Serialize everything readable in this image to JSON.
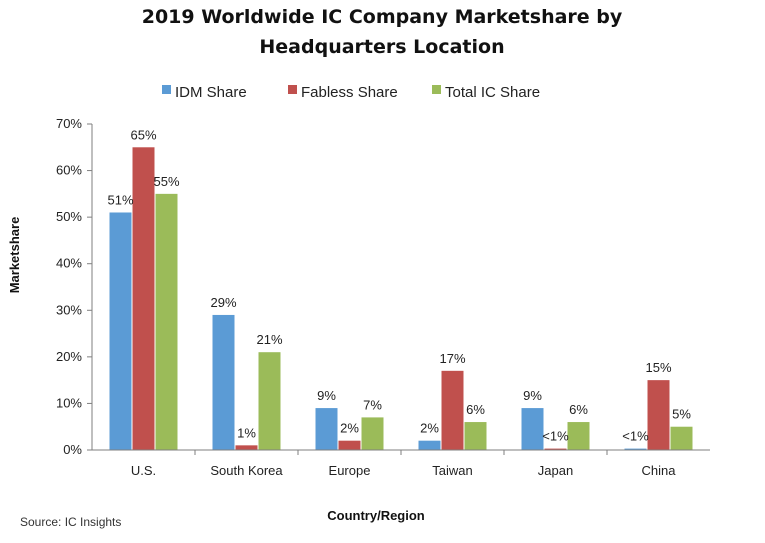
{
  "chart_data": {
    "type": "bar",
    "title": "2019 Worldwide IC Company Marketshare by Headquarters Location",
    "title_lines": [
      "2019 Worldwide IC Company Marketshare by",
      "Headquarters Location"
    ],
    "xlabel": "Country/Region",
    "ylabel": "Marketshare",
    "ylim": [
      0,
      70
    ],
    "yticks": [
      0,
      10,
      20,
      30,
      40,
      50,
      60,
      70
    ],
    "ytick_labels": [
      "0%",
      "10%",
      "20%",
      "30%",
      "40%",
      "50%",
      "60%",
      "70%"
    ],
    "grid": false,
    "legend_position": "top",
    "categories": [
      "U.S.",
      "South Korea",
      "Europe",
      "Taiwan",
      "Japan",
      "China"
    ],
    "series": [
      {
        "name": "IDM Share",
        "color": "#5b9bd5",
        "values": [
          51,
          29,
          9,
          2,
          9,
          0.3
        ],
        "labels": [
          "51%",
          "29%",
          "9%",
          "2%",
          "9%",
          "<1%"
        ]
      },
      {
        "name": "Fabless Share",
        "color": "#c0504d",
        "values": [
          65,
          1,
          2,
          17,
          0.3,
          15
        ],
        "labels": [
          "65%",
          "1%",
          "2%",
          "17%",
          "<1%",
          "15%"
        ]
      },
      {
        "name": "Total IC Share",
        "color": "#9bbb59",
        "values": [
          55,
          21,
          7,
          6,
          6,
          5
        ],
        "labels": [
          "55%",
          "21%",
          "7%",
          "6%",
          "6%",
          "5%"
        ]
      }
    ],
    "source": "Source: IC Insights"
  }
}
